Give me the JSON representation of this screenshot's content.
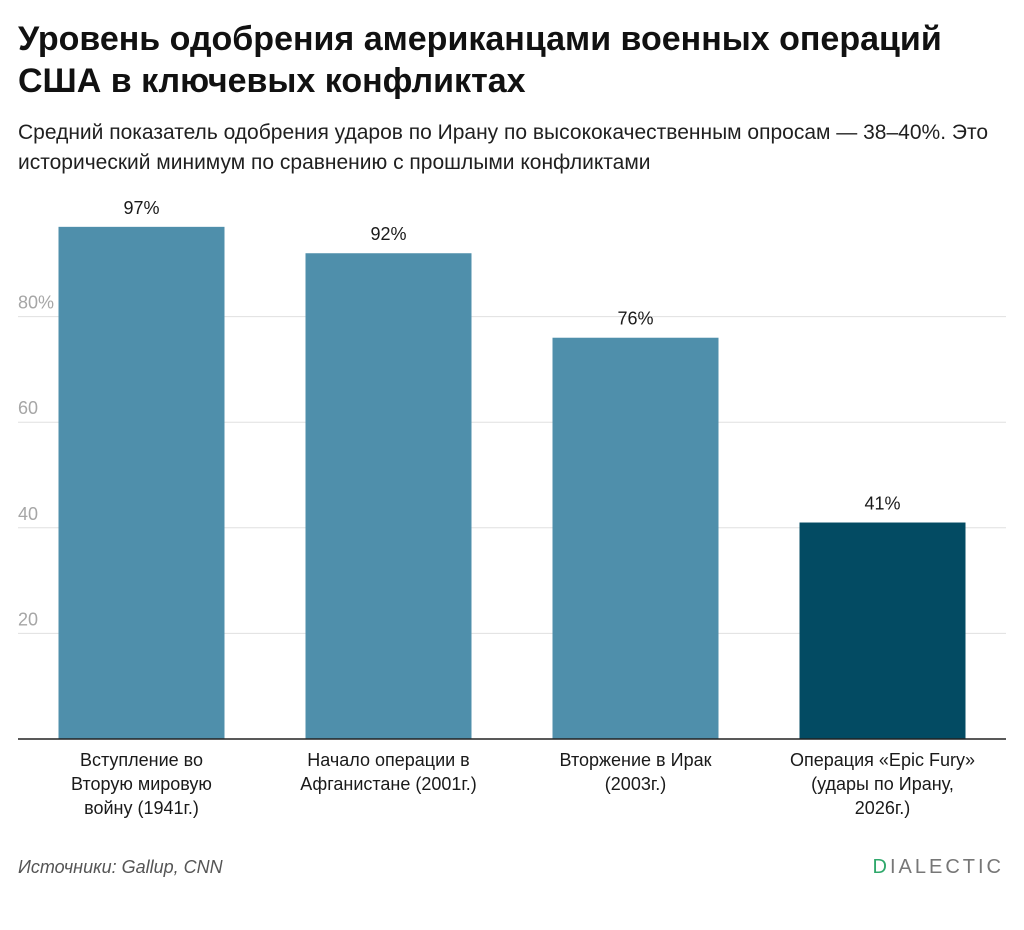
{
  "title": "Уровень одобрения американцами военных операций США в ключевых конфликтах",
  "subtitle": "Средний показатель одобрения ударов по Ирану по высококачественным опросам — 38–40%. Это исторический минимум по сравнению с прошлыми конфликтами",
  "source": "Источники: Gallup, CNN",
  "brand": {
    "first_letter": "D",
    "rest": "IALECTIC"
  },
  "colors": {
    "bar": "#4f8fab",
    "highlight": "#034b63",
    "grid": "#e0e0e0",
    "axis": "#222222",
    "tick_label": "#a6a6a6",
    "brand_accent": "#2fa86b"
  },
  "chart_data": {
    "type": "bar",
    "title": "Уровень одобрения американцами военных операций США в ключевых конфликтах",
    "categories": [
      [
        "Вступление во",
        "Вторую мировую",
        "войну (1941г.)"
      ],
      [
        "Начало операции в",
        "Афганистане (2001г.)"
      ],
      [
        "Вторжение в Ирак",
        "(2003г.)"
      ],
      [
        "Операция «Epic Fury»",
        "(удары по Ирану,",
        "2026г.)"
      ]
    ],
    "values": [
      97,
      92,
      76,
      41
    ],
    "value_labels": [
      "97%",
      "92%",
      "76%",
      "41%"
    ],
    "highlight_index": 3,
    "yticks": [
      20,
      40,
      60,
      80
    ],
    "ytick_labels": [
      "20",
      "40",
      "60",
      "80%"
    ],
    "ylim": [
      0,
      100
    ],
    "grid": true,
    "xlabel": "",
    "ylabel": ""
  }
}
